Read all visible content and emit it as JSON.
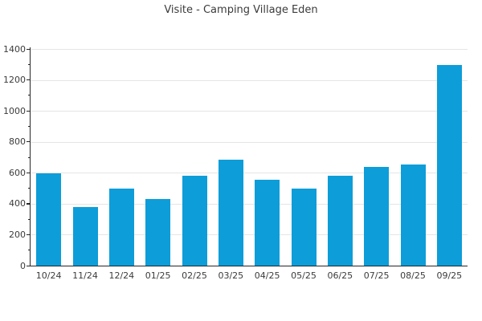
{
  "title": "Visite - Camping Village Eden",
  "chart_data": {
    "type": "bar",
    "title": "Visite - Camping Village Eden",
    "xlabel": "",
    "ylabel": "",
    "categories": [
      "10/24",
      "11/24",
      "12/24",
      "01/25",
      "02/25",
      "03/25",
      "04/25",
      "05/25",
      "06/25",
      "07/25",
      "08/25",
      "09/25"
    ],
    "values": [
      595,
      380,
      500,
      430,
      580,
      685,
      555,
      500,
      580,
      640,
      655,
      1295
    ],
    "ylim": [
      0,
      1400
    ],
    "ytick_step": 200,
    "yminor_step": 100,
    "ytick_labels": [
      "0",
      "200",
      "400",
      "600",
      "800",
      "1000",
      "1200",
      "1400"
    ],
    "grid": "horizontal-major",
    "legend": "none",
    "colors": {
      "bar": "#0d9dd9",
      "axis": "#262626",
      "grid": "#e5e5e5",
      "text": "#3b3b3b",
      "background": "#ffffff"
    }
  }
}
